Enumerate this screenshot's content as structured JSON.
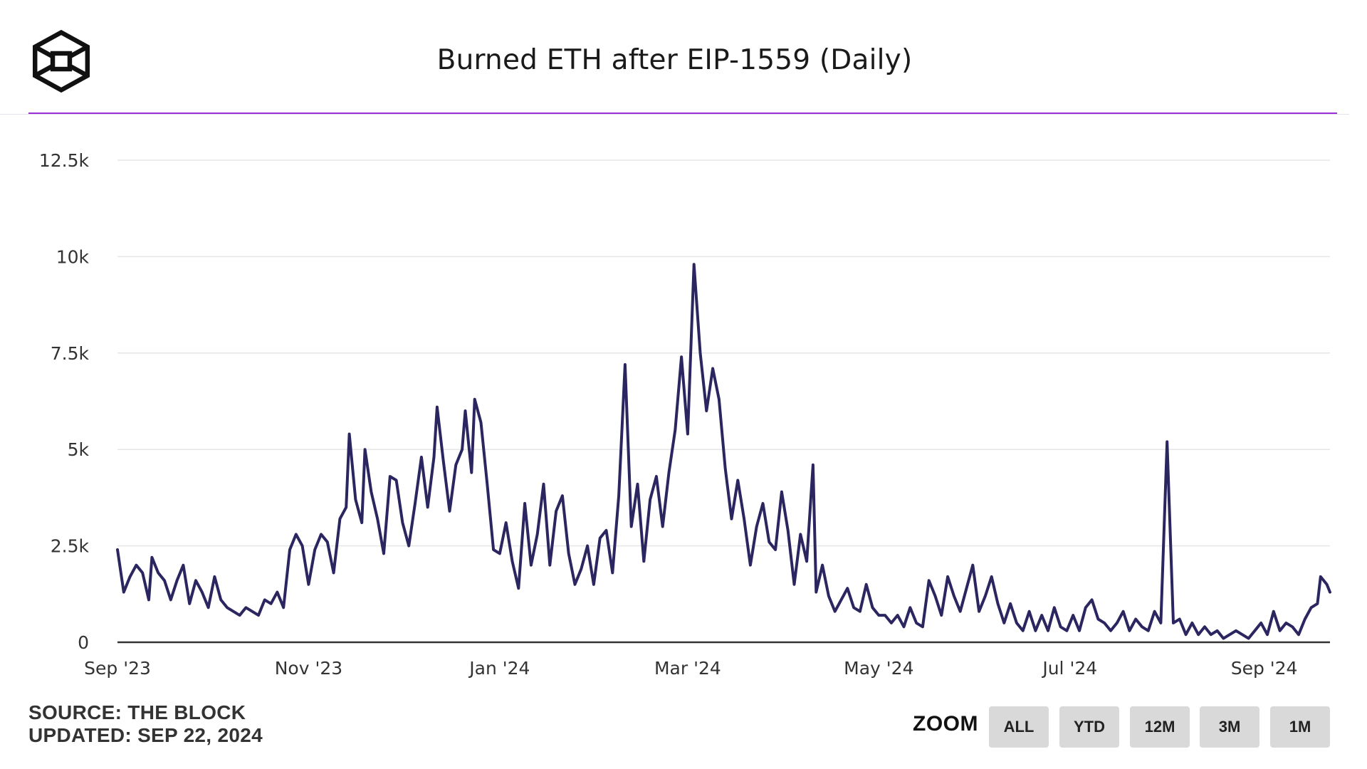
{
  "header": {
    "title": "Burned ETH after EIP-1559 (Daily)",
    "logo_icon": "the-block-cube-logo-icon"
  },
  "footer": {
    "source": "SOURCE: THE BLOCK",
    "updated": "UPDATED: SEP 22, 2024"
  },
  "zoom": {
    "label": "ZOOM",
    "buttons": [
      "ALL",
      "YTD",
      "12M",
      "3M",
      "1M"
    ]
  },
  "colors": {
    "line": "#2b2560",
    "accent": "#9b2fd6",
    "grid": "#e6e6e6",
    "button": "#d9d9d9"
  },
  "chart_data": {
    "type": "line",
    "title": "Burned ETH after EIP-1559 (Daily)",
    "xlabel": "",
    "ylabel": "",
    "ylim": [
      0,
      12500
    ],
    "xlim": [
      "2023-09-01",
      "2024-09-22"
    ],
    "grid": true,
    "legend": "none",
    "y_ticks": [
      0,
      2500,
      5000,
      7500,
      10000,
      12500
    ],
    "y_tick_labels": [
      "0",
      "2.5k",
      "5k",
      "7.5k",
      "10k",
      "12.5k"
    ],
    "x_ticks": [
      "2023-09-01",
      "2023-11-01",
      "2024-01-01",
      "2024-03-01",
      "2024-05-01",
      "2024-07-01",
      "2024-09-01"
    ],
    "x_tick_labels": [
      "Sep '23",
      "Nov '23",
      "Jan '24",
      "Mar '24",
      "May '24",
      "Jul '24",
      "Sep '24"
    ],
    "series": [
      {
        "points": [
          [
            "2023-09-01",
            2400
          ],
          [
            "2023-09-03",
            1300
          ],
          [
            "2023-09-05",
            1700
          ],
          [
            "2023-09-07",
            2000
          ],
          [
            "2023-09-09",
            1800
          ],
          [
            "2023-09-11",
            1100
          ],
          [
            "2023-09-12",
            2200
          ],
          [
            "2023-09-14",
            1800
          ],
          [
            "2023-09-16",
            1600
          ],
          [
            "2023-09-18",
            1100
          ],
          [
            "2023-09-20",
            1600
          ],
          [
            "2023-09-22",
            2000
          ],
          [
            "2023-09-24",
            1000
          ],
          [
            "2023-09-26",
            1600
          ],
          [
            "2023-09-28",
            1300
          ],
          [
            "2023-09-30",
            900
          ],
          [
            "2023-10-02",
            1700
          ],
          [
            "2023-10-04",
            1100
          ],
          [
            "2023-10-06",
            900
          ],
          [
            "2023-10-08",
            800
          ],
          [
            "2023-10-10",
            700
          ],
          [
            "2023-10-12",
            900
          ],
          [
            "2023-10-14",
            800
          ],
          [
            "2023-10-16",
            700
          ],
          [
            "2023-10-18",
            1100
          ],
          [
            "2023-10-20",
            1000
          ],
          [
            "2023-10-22",
            1300
          ],
          [
            "2023-10-24",
            900
          ],
          [
            "2023-10-26",
            2400
          ],
          [
            "2023-10-28",
            2800
          ],
          [
            "2023-10-30",
            2500
          ],
          [
            "2023-11-01",
            1500
          ],
          [
            "2023-11-03",
            2400
          ],
          [
            "2023-11-05",
            2800
          ],
          [
            "2023-11-07",
            2600
          ],
          [
            "2023-11-09",
            1800
          ],
          [
            "2023-11-11",
            3200
          ],
          [
            "2023-11-13",
            3500
          ],
          [
            "2023-11-14",
            5400
          ],
          [
            "2023-11-16",
            3700
          ],
          [
            "2023-11-18",
            3100
          ],
          [
            "2023-11-19",
            5000
          ],
          [
            "2023-11-21",
            3900
          ],
          [
            "2023-11-23",
            3200
          ],
          [
            "2023-11-25",
            2300
          ],
          [
            "2023-11-27",
            4300
          ],
          [
            "2023-11-29",
            4200
          ],
          [
            "2023-12-01",
            3100
          ],
          [
            "2023-12-03",
            2500
          ],
          [
            "2023-12-05",
            3600
          ],
          [
            "2023-12-07",
            4800
          ],
          [
            "2023-12-09",
            3500
          ],
          [
            "2023-12-11",
            4800
          ],
          [
            "2023-12-12",
            6100
          ],
          [
            "2023-12-14",
            4700
          ],
          [
            "2023-12-16",
            3400
          ],
          [
            "2023-12-18",
            4600
          ],
          [
            "2023-12-20",
            5000
          ],
          [
            "2023-12-21",
            6000
          ],
          [
            "2023-12-23",
            4400
          ],
          [
            "2023-12-24",
            6300
          ],
          [
            "2023-12-26",
            5700
          ],
          [
            "2023-12-28",
            4100
          ],
          [
            "2023-12-30",
            2400
          ],
          [
            "2024-01-01",
            2300
          ],
          [
            "2024-01-03",
            3100
          ],
          [
            "2024-01-05",
            2100
          ],
          [
            "2024-01-07",
            1400
          ],
          [
            "2024-01-09",
            3600
          ],
          [
            "2024-01-11",
            2000
          ],
          [
            "2024-01-13",
            2800
          ],
          [
            "2024-01-15",
            4100
          ],
          [
            "2024-01-17",
            2000
          ],
          [
            "2024-01-19",
            3400
          ],
          [
            "2024-01-21",
            3800
          ],
          [
            "2024-01-23",
            2300
          ],
          [
            "2024-01-25",
            1500
          ],
          [
            "2024-01-27",
            1900
          ],
          [
            "2024-01-29",
            2500
          ],
          [
            "2024-01-31",
            1500
          ],
          [
            "2024-02-02",
            2700
          ],
          [
            "2024-02-04",
            2900
          ],
          [
            "2024-02-06",
            1800
          ],
          [
            "2024-02-08",
            3800
          ],
          [
            "2024-02-10",
            7200
          ],
          [
            "2024-02-12",
            3000
          ],
          [
            "2024-02-14",
            4100
          ],
          [
            "2024-02-16",
            2100
          ],
          [
            "2024-02-18",
            3700
          ],
          [
            "2024-02-20",
            4300
          ],
          [
            "2024-02-22",
            3000
          ],
          [
            "2024-02-24",
            4400
          ],
          [
            "2024-02-26",
            5500
          ],
          [
            "2024-02-28",
            7400
          ],
          [
            "2024-03-01",
            5400
          ],
          [
            "2024-03-03",
            9800
          ],
          [
            "2024-03-05",
            7500
          ],
          [
            "2024-03-07",
            6000
          ],
          [
            "2024-03-09",
            7100
          ],
          [
            "2024-03-11",
            6300
          ],
          [
            "2024-03-13",
            4500
          ],
          [
            "2024-03-15",
            3200
          ],
          [
            "2024-03-17",
            4200
          ],
          [
            "2024-03-19",
            3200
          ],
          [
            "2024-03-21",
            2000
          ],
          [
            "2024-03-23",
            3000
          ],
          [
            "2024-03-25",
            3600
          ],
          [
            "2024-03-27",
            2600
          ],
          [
            "2024-03-29",
            2400
          ],
          [
            "2024-03-31",
            3900
          ],
          [
            "2024-04-02",
            2900
          ],
          [
            "2024-04-04",
            1500
          ],
          [
            "2024-04-06",
            2800
          ],
          [
            "2024-04-08",
            2100
          ],
          [
            "2024-04-10",
            4600
          ],
          [
            "2024-04-11",
            1300
          ],
          [
            "2024-04-13",
            2000
          ],
          [
            "2024-04-15",
            1200
          ],
          [
            "2024-04-17",
            800
          ],
          [
            "2024-04-19",
            1100
          ],
          [
            "2024-04-21",
            1400
          ],
          [
            "2024-04-23",
            900
          ],
          [
            "2024-04-25",
            800
          ],
          [
            "2024-04-27",
            1500
          ],
          [
            "2024-04-29",
            900
          ],
          [
            "2024-05-01",
            700
          ],
          [
            "2024-05-03",
            700
          ],
          [
            "2024-05-05",
            500
          ],
          [
            "2024-05-07",
            700
          ],
          [
            "2024-05-09",
            400
          ],
          [
            "2024-05-11",
            900
          ],
          [
            "2024-05-13",
            500
          ],
          [
            "2024-05-15",
            400
          ],
          [
            "2024-05-17",
            1600
          ],
          [
            "2024-05-19",
            1200
          ],
          [
            "2024-05-21",
            700
          ],
          [
            "2024-05-23",
            1700
          ],
          [
            "2024-05-25",
            1200
          ],
          [
            "2024-05-27",
            800
          ],
          [
            "2024-05-29",
            1400
          ],
          [
            "2024-05-31",
            2000
          ],
          [
            "2024-06-02",
            800
          ],
          [
            "2024-06-04",
            1200
          ],
          [
            "2024-06-06",
            1700
          ],
          [
            "2024-06-08",
            1000
          ],
          [
            "2024-06-10",
            500
          ],
          [
            "2024-06-12",
            1000
          ],
          [
            "2024-06-14",
            500
          ],
          [
            "2024-06-16",
            300
          ],
          [
            "2024-06-18",
            800
          ],
          [
            "2024-06-20",
            300
          ],
          [
            "2024-06-22",
            700
          ],
          [
            "2024-06-24",
            300
          ],
          [
            "2024-06-26",
            900
          ],
          [
            "2024-06-28",
            400
          ],
          [
            "2024-06-30",
            300
          ],
          [
            "2024-07-02",
            700
          ],
          [
            "2024-07-04",
            300
          ],
          [
            "2024-07-06",
            900
          ],
          [
            "2024-07-08",
            1100
          ],
          [
            "2024-07-10",
            600
          ],
          [
            "2024-07-12",
            500
          ],
          [
            "2024-07-14",
            300
          ],
          [
            "2024-07-16",
            500
          ],
          [
            "2024-07-18",
            800
          ],
          [
            "2024-07-20",
            300
          ],
          [
            "2024-07-22",
            600
          ],
          [
            "2024-07-24",
            400
          ],
          [
            "2024-07-26",
            300
          ],
          [
            "2024-07-28",
            800
          ],
          [
            "2024-07-30",
            500
          ],
          [
            "2024-08-01",
            5200
          ],
          [
            "2024-08-03",
            500
          ],
          [
            "2024-08-05",
            600
          ],
          [
            "2024-08-07",
            200
          ],
          [
            "2024-08-09",
            500
          ],
          [
            "2024-08-11",
            200
          ],
          [
            "2024-08-13",
            400
          ],
          [
            "2024-08-15",
            200
          ],
          [
            "2024-08-17",
            300
          ],
          [
            "2024-08-19",
            100
          ],
          [
            "2024-08-21",
            200
          ],
          [
            "2024-08-23",
            300
          ],
          [
            "2024-08-25",
            200
          ],
          [
            "2024-08-27",
            100
          ],
          [
            "2024-08-29",
            300
          ],
          [
            "2024-08-31",
            500
          ],
          [
            "2024-09-02",
            200
          ],
          [
            "2024-09-04",
            800
          ],
          [
            "2024-09-06",
            300
          ],
          [
            "2024-09-08",
            500
          ],
          [
            "2024-09-10",
            400
          ],
          [
            "2024-09-12",
            200
          ],
          [
            "2024-09-14",
            600
          ],
          [
            "2024-09-16",
            900
          ],
          [
            "2024-09-18",
            1000
          ],
          [
            "2024-09-19",
            1700
          ],
          [
            "2024-09-21",
            1500
          ],
          [
            "2024-09-22",
            1300
          ]
        ]
      }
    ]
  }
}
